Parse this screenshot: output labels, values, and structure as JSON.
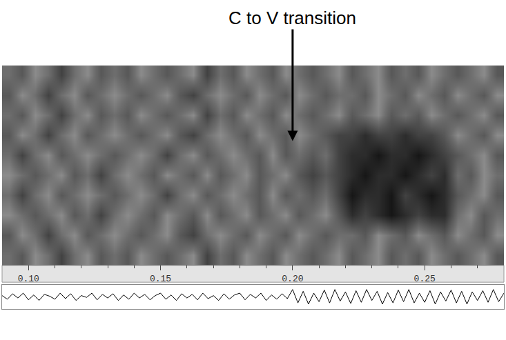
{
  "chart_data": {
    "type": "spectrogram",
    "annotation": "C to V transition",
    "annotation_x": 0.2,
    "xlim": [
      0.09,
      0.28
    ],
    "xticks": [
      {
        "value": 0.1,
        "label": "0.10"
      },
      {
        "value": 0.15,
        "label": "0.15"
      },
      {
        "value": 0.2,
        "label": "0.20"
      },
      {
        "value": 0.25,
        "label": "0.25"
      }
    ],
    "minor_xticks": [
      0.11,
      0.12,
      0.13,
      0.14,
      0.16,
      0.17,
      0.18,
      0.19,
      0.21,
      0.22,
      0.23,
      0.24,
      0.26,
      0.27
    ],
    "tick_labels": "x",
    "ylim": [
      -0.5,
      9.5
    ],
    "zlim": [
      0,
      1
    ],
    "cell_x": [
      0.0925,
      0.0975,
      0.1025,
      0.1075,
      0.1125,
      0.1175,
      0.1225,
      0.1275,
      0.1325,
      0.1375,
      0.1425,
      0.1475,
      0.1525,
      0.1575,
      0.1625,
      0.1675,
      0.1725,
      0.1775,
      0.1825,
      0.1875,
      0.1925,
      0.1975,
      0.2025,
      0.2075,
      0.2125,
      0.2175,
      0.2225,
      0.2275,
      0.2325,
      0.2375,
      0.2425,
      0.2475,
      0.2525,
      0.2575,
      0.2625,
      0.2675,
      0.2725,
      0.2775
    ],
    "cell_y": [
      0,
      1,
      2,
      3,
      4,
      5,
      6,
      7,
      8,
      9
    ],
    "cells": [
      [
        0.5,
        0.4,
        0.6,
        0.5,
        0.3,
        0.5,
        0.6,
        0.4,
        0.5,
        0.4,
        0.6,
        0.5,
        0.4,
        0.5,
        0.6,
        0.3,
        0.5,
        0.4,
        0.6,
        0.5,
        0.4,
        0.6,
        0.5,
        0.4,
        0.5,
        0.6,
        0.4,
        0.5,
        0.6,
        0.4,
        0.5,
        0.4,
        0.6,
        0.5,
        0.4,
        0.5,
        0.6,
        0.4
      ],
      [
        0.4,
        0.6,
        0.5,
        0.3,
        0.5,
        0.6,
        0.4,
        0.5,
        0.6,
        0.5,
        0.4,
        0.5,
        0.6,
        0.4,
        0.3,
        0.5,
        0.6,
        0.5,
        0.4,
        0.6,
        0.5,
        0.4,
        0.6,
        0.5,
        0.4,
        0.5,
        0.5,
        0.4,
        0.6,
        0.5,
        0.4,
        0.6,
        0.5,
        0.4,
        0.6,
        0.5,
        0.4,
        0.6
      ],
      [
        0.6,
        0.5,
        0.4,
        0.5,
        0.6,
        0.4,
        0.5,
        0.3,
        0.5,
        0.6,
        0.5,
        0.4,
        0.6,
        0.5,
        0.4,
        0.6,
        0.4,
        0.5,
        0.6,
        0.4,
        0.5,
        0.6,
        0.4,
        0.5,
        0.6,
        0.4,
        0.2,
        0.3,
        0.2,
        0.1,
        0.2,
        0.3,
        0.2,
        0.2,
        0.5,
        0.6,
        0.4,
        0.5
      ],
      [
        0.5,
        0.3,
        0.5,
        0.6,
        0.4,
        0.5,
        0.6,
        0.5,
        0.4,
        0.5,
        0.6,
        0.5,
        0.3,
        0.5,
        0.6,
        0.4,
        0.5,
        0.6,
        0.5,
        0.4,
        0.6,
        0.4,
        0.5,
        0.4,
        0.5,
        0.3,
        0.1,
        0.2,
        0.2,
        0.1,
        0.3,
        0.2,
        0.1,
        0.2,
        0.4,
        0.5,
        0.6,
        0.4
      ],
      [
        0.6,
        0.5,
        0.4,
        0.5,
        0.6,
        0.4,
        0.5,
        0.3,
        0.5,
        0.6,
        0.5,
        0.4,
        0.6,
        0.5,
        0.4,
        0.6,
        0.4,
        0.5,
        0.6,
        0.4,
        0.5,
        0.6,
        0.4,
        0.3,
        0.4,
        0.3,
        0.2,
        0.1,
        0.2,
        0.2,
        0.1,
        0.2,
        0.3,
        0.2,
        0.5,
        0.4,
        0.6,
        0.5
      ],
      [
        0.5,
        0.3,
        0.5,
        0.6,
        0.4,
        0.5,
        0.6,
        0.5,
        0.4,
        0.5,
        0.6,
        0.5,
        0.3,
        0.5,
        0.6,
        0.4,
        0.5,
        0.6,
        0.5,
        0.4,
        0.6,
        0.4,
        0.5,
        0.4,
        0.5,
        0.3,
        0.2,
        0.2,
        0.1,
        0.2,
        0.2,
        0.1,
        0.2,
        0.3,
        0.4,
        0.5,
        0.6,
        0.4
      ],
      [
        0.4,
        0.6,
        0.5,
        0.3,
        0.5,
        0.6,
        0.4,
        0.5,
        0.6,
        0.5,
        0.4,
        0.5,
        0.6,
        0.4,
        0.3,
        0.5,
        0.6,
        0.5,
        0.4,
        0.6,
        0.5,
        0.4,
        0.6,
        0.5,
        0.4,
        0.3,
        0.3,
        0.2,
        0.3,
        0.3,
        0.2,
        0.3,
        0.3,
        0.4,
        0.6,
        0.5,
        0.4,
        0.6
      ],
      [
        0.5,
        0.4,
        0.6,
        0.5,
        0.3,
        0.5,
        0.6,
        0.4,
        0.5,
        0.4,
        0.6,
        0.5,
        0.4,
        0.5,
        0.6,
        0.3,
        0.5,
        0.4,
        0.6,
        0.5,
        0.4,
        0.6,
        0.5,
        0.4,
        0.5,
        0.6,
        0.4,
        0.5,
        0.6,
        0.4,
        0.5,
        0.4,
        0.6,
        0.5,
        0.4,
        0.5,
        0.6,
        0.4
      ],
      [
        0.4,
        0.6,
        0.5,
        0.3,
        0.5,
        0.6,
        0.4,
        0.5,
        0.6,
        0.5,
        0.4,
        0.5,
        0.6,
        0.4,
        0.3,
        0.5,
        0.6,
        0.5,
        0.4,
        0.6,
        0.5,
        0.4,
        0.6,
        0.5,
        0.4,
        0.5,
        0.5,
        0.4,
        0.6,
        0.5,
        0.4,
        0.6,
        0.5,
        0.4,
        0.6,
        0.5,
        0.4,
        0.6
      ],
      [
        0.5,
        0.4,
        0.6,
        0.5,
        0.3,
        0.5,
        0.6,
        0.4,
        0.5,
        0.4,
        0.6,
        0.5,
        0.4,
        0.5,
        0.6,
        0.3,
        0.5,
        0.4,
        0.6,
        0.5,
        0.4,
        0.6,
        0.5,
        0.4,
        0.5,
        0.6,
        0.4,
        0.5,
        0.6,
        0.4,
        0.5,
        0.4,
        0.6,
        0.5,
        0.4,
        0.5,
        0.6,
        0.4
      ]
    ],
    "waveform_ylim": [
      -1,
      1
    ],
    "waveform_x": [
      0.09,
      0.092,
      0.094,
      0.096,
      0.098,
      0.1,
      0.102,
      0.104,
      0.106,
      0.108,
      0.11,
      0.112,
      0.114,
      0.116,
      0.118,
      0.12,
      0.122,
      0.124,
      0.126,
      0.128,
      0.13,
      0.132,
      0.134,
      0.136,
      0.138,
      0.14,
      0.142,
      0.144,
      0.146,
      0.148,
      0.15,
      0.152,
      0.154,
      0.156,
      0.158,
      0.16,
      0.162,
      0.164,
      0.166,
      0.168,
      0.17,
      0.172,
      0.174,
      0.176,
      0.178,
      0.18,
      0.182,
      0.184,
      0.186,
      0.188,
      0.19,
      0.192,
      0.194,
      0.196,
      0.198,
      0.2,
      0.202,
      0.204,
      0.206,
      0.208,
      0.21,
      0.212,
      0.214,
      0.216,
      0.218,
      0.22,
      0.222,
      0.224,
      0.226,
      0.228,
      0.23,
      0.232,
      0.234,
      0.236,
      0.238,
      0.24,
      0.242,
      0.244,
      0.246,
      0.248,
      0.25,
      0.252,
      0.254,
      0.256,
      0.258,
      0.26,
      0.262,
      0.264,
      0.266,
      0.268,
      0.27,
      0.272,
      0.274,
      0.276,
      0.278,
      0.28
    ],
    "waveform": [
      0.1,
      -0.2,
      0.25,
      -0.1,
      0.3,
      -0.25,
      0.15,
      -0.3,
      0.2,
      0.05,
      -0.2,
      0.3,
      -0.15,
      0.25,
      -0.3,
      0.1,
      -0.05,
      0.3,
      -0.25,
      0.2,
      -0.1,
      0.25,
      -0.3,
      0.15,
      -0.2,
      0.3,
      -0.1,
      0.2,
      -0.25,
      0.1,
      0.3,
      -0.2,
      0.15,
      -0.3,
      0.25,
      -0.1,
      0.2,
      -0.25,
      0.3,
      -0.15,
      0.1,
      -0.3,
      0.25,
      -0.2,
      0.15,
      0.3,
      -0.25,
      0.2,
      -0.1,
      0.3,
      -0.3,
      0.15,
      -0.2,
      0.25,
      -0.15,
      0.6,
      -0.5,
      0.45,
      -0.6,
      0.3,
      -0.4,
      0.55,
      -0.5,
      0.6,
      -0.35,
      0.4,
      -0.55,
      0.5,
      -0.45,
      0.6,
      -0.3,
      0.45,
      -0.6,
      0.35,
      -0.5,
      0.55,
      -0.4,
      0.6,
      -0.5,
      0.3,
      -0.45,
      0.5,
      -0.6,
      0.4,
      -0.35,
      0.55,
      -0.5,
      0.45,
      -0.6,
      0.4,
      -0.3,
      0.5,
      -0.45,
      0.6,
      -0.4,
      0.3
    ],
    "color": "#000000"
  }
}
